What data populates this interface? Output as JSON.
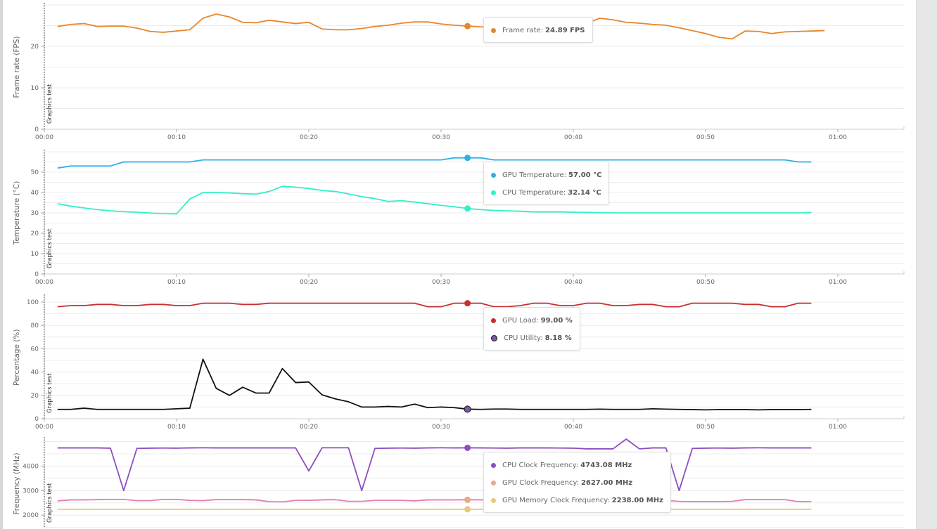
{
  "marker_label": "Graphics test",
  "x_ticks": [
    "00:00",
    "00:10",
    "00:20",
    "00:30",
    "00:40",
    "00:50",
    "01:00"
  ],
  "hover_time": "00:32",
  "chart_data": [
    {
      "type": "line",
      "ylabel": "Frame rate (FPS)",
      "ylim": [
        0,
        30
      ],
      "yticks": [
        0,
        10,
        20
      ],
      "xlim": [
        "00:00",
        "01:05"
      ],
      "grid": true,
      "series": [
        {
          "name": "Frame rate",
          "unit": "FPS",
          "color": "#e8862b",
          "tooltip_value": "24.89 FPS",
          "values": [
            24.8,
            25.3,
            25.5,
            24.8,
            24.9,
            24.9,
            24.4,
            23.6,
            23.4,
            23.7,
            24.0,
            26.8,
            27.8,
            27.1,
            25.8,
            25.7,
            26.3,
            25.9,
            25.5,
            25.8,
            24.2,
            24.0,
            24.0,
            24.3,
            24.8,
            25.1,
            25.6,
            25.9,
            25.9,
            25.4,
            25.1,
            24.89,
            24.7,
            24.5,
            24.4,
            24.4,
            24.5,
            24.5,
            24.6,
            25.0,
            25.5,
            26.8,
            26.4,
            25.8,
            25.6,
            25.3,
            25.1,
            24.5,
            23.8,
            23.1,
            22.2,
            21.8,
            23.7,
            23.6,
            23.1,
            23.5,
            23.6,
            23.7,
            23.8
          ]
        }
      ]
    },
    {
      "type": "line",
      "ylabel": "Temperature (°C)",
      "ylim": [
        0,
        60
      ],
      "yticks": [
        0,
        10,
        20,
        30,
        40,
        50
      ],
      "xlim": [
        "00:00",
        "01:05"
      ],
      "grid": true,
      "series": [
        {
          "name": "GPU Temperature",
          "unit": "°C",
          "color": "#2db0e6",
          "tooltip_value": "57.00 °C",
          "values": [
            52,
            53,
            53,
            53,
            53,
            55,
            55,
            55,
            55,
            55,
            55,
            56,
            56,
            56,
            56,
            56,
            56,
            56,
            56,
            56,
            56,
            56,
            56,
            56,
            56,
            56,
            56,
            56,
            56,
            56,
            57,
            57,
            57,
            56,
            56,
            56,
            56,
            56,
            56,
            56,
            56,
            56,
            56,
            56,
            56,
            56,
            56,
            56,
            56,
            56,
            56,
            56,
            56,
            56,
            56,
            56,
            55,
            55
          ]
        },
        {
          "name": "CPU Temperature",
          "unit": "°C",
          "color": "#33efc6",
          "tooltip_value": "32.14 °C",
          "values": [
            34.5,
            33.3,
            32.4,
            31.6,
            31.0,
            30.6,
            30.3,
            29.9,
            29.6,
            29.5,
            36.8,
            40,
            40,
            39.8,
            39.4,
            39.2,
            40.5,
            43,
            42.6,
            42,
            41,
            40.5,
            39.3,
            38,
            37,
            35.6,
            36,
            35.3,
            34.5,
            33.7,
            33,
            32.14,
            31.6,
            31.2,
            31,
            30.8,
            30.5,
            30.5,
            30.5,
            30.3,
            30.2,
            30.1,
            30,
            30,
            30,
            30,
            30,
            30,
            30,
            30,
            30,
            30,
            30,
            30,
            30,
            30,
            30,
            30.1
          ]
        }
      ]
    },
    {
      "type": "line",
      "ylabel": "Percentage (%)",
      "ylim": [
        0,
        105
      ],
      "yticks": [
        0,
        20,
        40,
        60,
        80,
        100
      ],
      "xlim": [
        "00:00",
        "01:05"
      ],
      "grid": true,
      "series": [
        {
          "name": "GPU Load",
          "unit": "%",
          "color": "#c8302f",
          "tooltip_value": "99.00 %",
          "values": [
            96,
            97,
            97,
            98,
            98,
            97,
            97,
            98,
            98,
            97,
            97,
            99,
            99,
            99,
            98,
            98,
            99,
            99,
            99,
            99,
            99,
            99,
            99,
            99,
            99,
            99,
            99,
            99,
            96,
            96,
            99,
            99,
            99,
            96,
            96,
            97,
            99,
            99,
            97,
            97,
            99,
            99,
            97,
            97,
            98,
            98,
            96,
            96,
            99,
            99,
            99,
            99,
            98,
            98,
            96,
            96,
            99,
            99
          ]
        },
        {
          "name": "CPU Utility",
          "unit": "%",
          "color": "#111111",
          "tooltip_value": "8.18 %",
          "values": [
            8,
            8,
            9,
            8,
            8,
            8,
            8,
            8,
            8,
            8.5,
            9,
            51,
            26,
            20,
            27,
            22,
            22,
            43,
            31,
            31.5,
            20.5,
            17,
            14.5,
            10,
            10,
            10.5,
            10,
            12.5,
            9.5,
            10,
            9.5,
            8.18,
            8,
            8.3,
            8.3,
            8,
            8,
            8,
            8,
            8,
            8,
            8.2,
            8,
            8,
            8,
            8.5,
            8.2,
            8,
            7.8,
            7.6,
            7.8,
            7.8,
            7.8,
            7.6,
            7.8,
            7.8,
            7.8,
            8
          ]
        }
      ]
    },
    {
      "type": "line",
      "ylabel": "Frequency (MHz)",
      "ylim": [
        0,
        5100
      ],
      "yticks": [
        2000,
        3000,
        4000
      ],
      "xlim": [
        "00:00",
        "01:05"
      ],
      "grid": true,
      "series": [
        {
          "name": "CPU Clock Frequency",
          "unit": "MHz",
          "color": "#8e4fc0",
          "tooltip_value": "4743.08 MHz",
          "values": [
            4740,
            4740,
            4740,
            4740,
            4730,
            3000,
            4720,
            4730,
            4735,
            4730,
            4740,
            4745,
            4740,
            4740,
            4740,
            4740,
            4740,
            4740,
            4740,
            3800,
            4745,
            4745,
            4745,
            3000,
            4720,
            4730,
            4735,
            4730,
            4740,
            4745,
            4740,
            4743,
            4740,
            4735,
            4730,
            4740,
            4740,
            4740,
            4735,
            4730,
            4700,
            4700,
            4700,
            5100,
            4700,
            4740,
            4740,
            3000,
            4720,
            4730,
            4735,
            4730,
            4740,
            4745,
            4740,
            4740,
            4740,
            4740
          ]
        },
        {
          "name": "GPU Clock Frequency",
          "unit": "MHz",
          "color": "#e07fb0",
          "tooltip_color": "#e8a88a",
          "tooltip_value": "2627.00 MHz",
          "values": [
            2580,
            2620,
            2620,
            2630,
            2640,
            2640,
            2590,
            2590,
            2640,
            2640,
            2600,
            2590,
            2630,
            2630,
            2630,
            2620,
            2550,
            2540,
            2600,
            2600,
            2620,
            2630,
            2560,
            2560,
            2600,
            2600,
            2600,
            2580,
            2620,
            2620,
            2620,
            2627,
            2620,
            2600,
            2590,
            2600,
            2620,
            2620,
            2610,
            2600,
            2600,
            2600,
            2600,
            2600,
            2600,
            2600,
            2600,
            2560,
            2550,
            2550,
            2550,
            2560,
            2630,
            2630,
            2630,
            2630,
            2550,
            2550
          ]
        },
        {
          "name": "GPU Memory Clock Frequency",
          "unit": "MHz",
          "color": "#e8c878",
          "tooltip_value": "2238.00 MHz",
          "values": [
            2238,
            2238,
            2238,
            2238,
            2238,
            2238,
            2238,
            2238,
            2238,
            2238,
            2238,
            2238,
            2238,
            2238,
            2238,
            2238,
            2238,
            2238,
            2238,
            2238,
            2238,
            2238,
            2238,
            2238,
            2238,
            2238,
            2238,
            2238,
            2238,
            2238,
            2238,
            2238,
            2238,
            2238,
            2238,
            2238,
            2238,
            2238,
            2238,
            2238,
            2238,
            2238,
            2238,
            2238,
            2238,
            2238,
            2238,
            2238,
            2238,
            2238,
            2238,
            2238,
            2238,
            2238,
            2238,
            2238,
            2238,
            2238
          ]
        }
      ]
    }
  ]
}
